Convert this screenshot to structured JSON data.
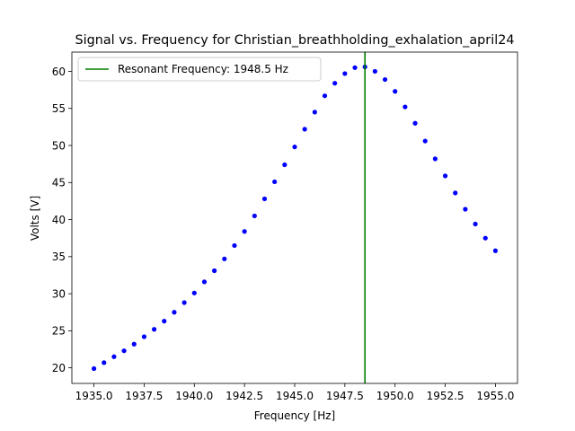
{
  "chart_data": {
    "type": "scatter",
    "title": "Signal vs. Frequency for Christian_breathholding_exhalation_april24",
    "xlabel": "Frequency [Hz]",
    "ylabel": "Volts [V]",
    "xlim": [
      1933.9,
      1956.1
    ],
    "ylim": [
      17.9,
      62.6
    ],
    "xticks": [
      1935.0,
      1937.5,
      1940.0,
      1942.5,
      1945.0,
      1947.5,
      1950.0,
      1952.5,
      1955.0
    ],
    "xtick_labels": [
      "1935.0",
      "1937.5",
      "1940.0",
      "1942.5",
      "1945.0",
      "1947.5",
      "1950.0",
      "1952.5",
      "1955.0"
    ],
    "yticks": [
      20,
      25,
      30,
      35,
      40,
      45,
      50,
      55,
      60
    ],
    "ytick_labels": [
      "20",
      "25",
      "30",
      "35",
      "40",
      "45",
      "50",
      "55",
      "60"
    ],
    "grid": false,
    "legend_position": "top-left",
    "series": [
      {
        "color": "#0000ff",
        "x": [
          1935.0,
          1935.5,
          1936.0,
          1936.5,
          1937.0,
          1937.5,
          1938.0,
          1938.5,
          1939.0,
          1939.5,
          1940.0,
          1940.5,
          1941.0,
          1941.5,
          1942.0,
          1942.5,
          1943.0,
          1943.5,
          1944.0,
          1944.5,
          1945.0,
          1945.5,
          1946.0,
          1946.5,
          1947.0,
          1947.5,
          1948.0,
          1948.5,
          1949.0,
          1949.5,
          1950.0,
          1950.5,
          1951.0,
          1951.5,
          1952.0,
          1952.5,
          1953.0,
          1953.5,
          1954.0,
          1954.5,
          1955.0
        ],
        "y": [
          19.9,
          20.7,
          21.5,
          22.3,
          23.2,
          24.2,
          25.2,
          26.3,
          27.5,
          28.8,
          30.1,
          31.6,
          33.1,
          34.7,
          36.5,
          38.4,
          40.5,
          42.8,
          45.1,
          47.4,
          49.8,
          52.2,
          54.5,
          56.7,
          58.4,
          59.7,
          60.5,
          60.6,
          60.0,
          58.9,
          57.3,
          55.2,
          53.0,
          50.6,
          48.2,
          45.9,
          43.6,
          41.4,
          39.4,
          37.5,
          35.8
        ]
      }
    ],
    "vline": {
      "x": 1948.5,
      "color": "#008000",
      "label": "Resonant Frequency: 1948.5 Hz"
    }
  }
}
